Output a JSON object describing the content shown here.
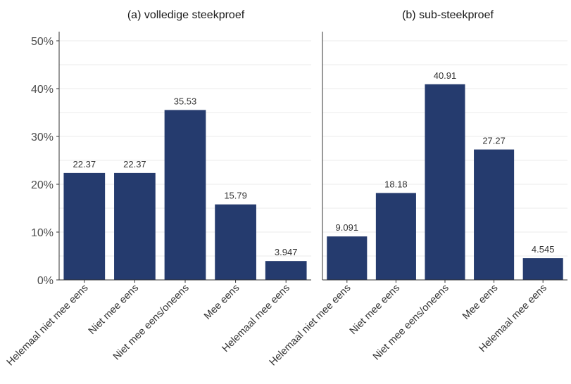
{
  "chart_data": [
    {
      "type": "bar",
      "title": "(a) volledige steekproef",
      "categories": [
        "Helemaal niet mee eens",
        "Niet mee eens",
        "Niet mee eens/oneens",
        "Mee eens",
        "Helemaal mee eens"
      ],
      "values": [
        22.37,
        22.37,
        35.53,
        15.79,
        3.947
      ],
      "value_labels": [
        "22.37",
        "22.37",
        "35.53",
        "15.79",
        "3.947"
      ],
      "yticks": [
        "0%",
        "10%",
        "20%",
        "30%",
        "40%",
        "50%"
      ],
      "ylim": [
        0,
        50
      ],
      "xlabel": "",
      "ylabel": "",
      "grid": true,
      "bar_color": "#253b6e"
    },
    {
      "type": "bar",
      "title": "(b) sub-steekproef",
      "categories": [
        "Helemaal niet mee eens",
        "Niet mee eens",
        "Niet mee eens/oneens",
        "Mee eens",
        "Helemaal mee eens"
      ],
      "values": [
        9.091,
        18.18,
        40.91,
        27.27,
        4.545
      ],
      "value_labels": [
        "9.091",
        "18.18",
        "40.91",
        "27.27",
        "4.545"
      ],
      "ylim": [
        0,
        50
      ],
      "xlabel": "",
      "ylabel": "",
      "grid": true,
      "bar_color": "#253b6e"
    }
  ]
}
